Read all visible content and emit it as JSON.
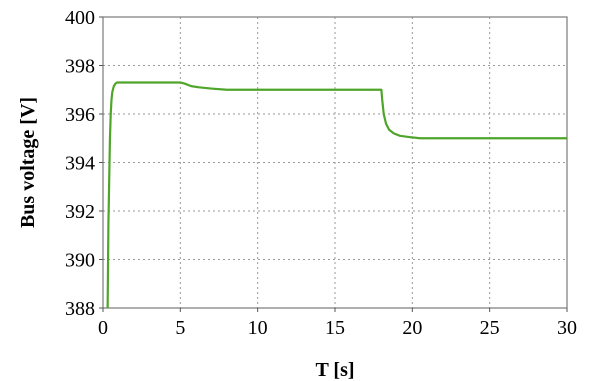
{
  "chart_data": {
    "type": "line",
    "title": "",
    "xlabel": "T [s]",
    "ylabel": "Bus voltage [V]",
    "xlim": [
      0,
      30
    ],
    "ylim": [
      388,
      400
    ],
    "xticks": [
      0,
      5,
      10,
      15,
      20,
      25,
      30
    ],
    "yticks": [
      388,
      390,
      392,
      394,
      396,
      398,
      400
    ],
    "grid": true,
    "line_color": "#4fa52a",
    "series": [
      {
        "x": [
          0.3,
          0.35,
          0.38,
          0.42,
          0.45,
          0.5,
          0.55,
          0.6,
          0.7,
          0.8,
          0.9,
          1.0,
          2.0,
          3.0,
          4.0,
          5.0,
          5.3,
          5.7,
          6.2,
          7.0,
          8.0,
          9.0,
          10.0,
          12.0,
          15.0,
          17.0,
          18.0,
          18.05,
          18.15,
          18.3,
          18.5,
          18.8,
          19.2,
          19.8,
          20.5,
          22.0,
          25.0,
          28.0,
          30.0
        ],
        "y": [
          388.0,
          391.5,
          392.5,
          394.0,
          395.0,
          396.0,
          396.6,
          396.9,
          397.15,
          397.25,
          397.3,
          397.3,
          397.3,
          397.3,
          397.3,
          397.3,
          397.25,
          397.15,
          397.1,
          397.05,
          397.0,
          397.0,
          397.0,
          397.0,
          397.0,
          397.0,
          397.0,
          396.6,
          396.0,
          395.6,
          395.35,
          395.2,
          395.1,
          395.05,
          395.0,
          395.0,
          395.0,
          395.0,
          395.0
        ]
      }
    ]
  }
}
